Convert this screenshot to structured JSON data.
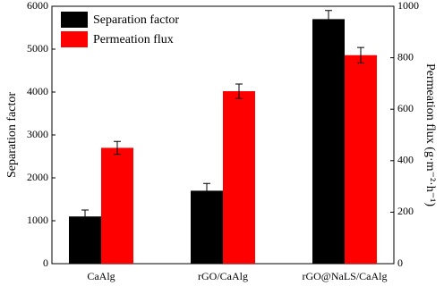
{
  "chart_data": {
    "type": "bar",
    "categories": [
      "CaAlg",
      "rGO/CaAlg",
      "rGO@NaLS/CaAlg"
    ],
    "series": [
      {
        "name": "Separation factor",
        "color": "#000000",
        "values": [
          1100,
          1700,
          5700
        ],
        "errors": [
          150,
          170,
          200
        ]
      },
      {
        "name": "Permeation flux",
        "color": "#ff0000",
        "axis": "y2",
        "values": [
          450,
          670,
          810
        ],
        "errors": [
          25,
          28,
          30
        ]
      }
    ],
    "y_label": "Separation factor",
    "y2_label": "Permeation flux (g·m⁻²·h⁻¹)",
    "ylim": [
      0,
      6000
    ],
    "yticks": [
      0,
      1000,
      2000,
      3000,
      4000,
      5000,
      6000
    ],
    "y2lim": [
      0,
      1000
    ],
    "y2ticks": [
      0,
      200,
      400,
      600,
      800,
      1000
    ],
    "legend": "upper left"
  }
}
